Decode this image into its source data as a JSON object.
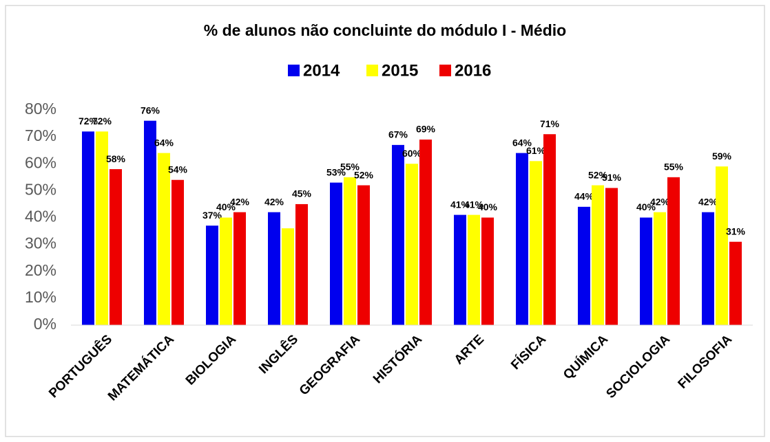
{
  "chart_data": {
    "type": "bar",
    "title": "% de alunos não concluinte do módulo I - Médio",
    "categories": [
      "PORTUGUÊS",
      "MATEMÁTICA",
      "BIOLOGIA",
      "INGLÊS",
      "GEOGRAFIA",
      "HISTÓRIA",
      "ARTE",
      "FÍSICA",
      "QUÍMICA",
      "SOCIOLOGIA",
      "FILOSOFIA"
    ],
    "series": [
      {
        "name": "2014",
        "color": "#0000ee",
        "values": [
          72,
          76,
          37,
          42,
          53,
          67,
          41,
          64,
          44,
          40,
          42
        ],
        "value_labels": [
          "72%",
          "76%",
          "37%",
          "42%",
          "53%",
          "67%",
          "41%",
          "64%",
          "44%",
          "40%",
          "42%"
        ]
      },
      {
        "name": "2015",
        "color": "#ffff00",
        "values": [
          72,
          64,
          40,
          36,
          55,
          60,
          41,
          61,
          52,
          42,
          59
        ],
        "value_labels": [
          "72%",
          "64%",
          "40%",
          null,
          "55%",
          "60%",
          "41%",
          "61%",
          "52%",
          "42%",
          "59%"
        ]
      },
      {
        "name": "2016",
        "color": "#ee0000",
        "values": [
          58,
          54,
          42,
          45,
          52,
          69,
          40,
          71,
          51,
          55,
          31
        ],
        "value_labels": [
          "58%",
          "54%",
          "42%",
          "45%",
          "52%",
          "69%",
          "40%",
          "71%",
          "51%",
          "55%",
          "31%"
        ]
      }
    ],
    "ylim": [
      0,
      80
    ],
    "yticks": [
      {
        "value": 0,
        "label": "0%"
      },
      {
        "value": 10,
        "label": "10%"
      },
      {
        "value": 20,
        "label": "20%"
      },
      {
        "value": 30,
        "label": "30%"
      },
      {
        "value": 40,
        "label": "40%"
      },
      {
        "value": 50,
        "label": "50%"
      },
      {
        "value": 60,
        "label": "60%"
      },
      {
        "value": 70,
        "label": "70%"
      },
      {
        "value": 80,
        "label": "80%"
      }
    ],
    "legend": "top"
  }
}
